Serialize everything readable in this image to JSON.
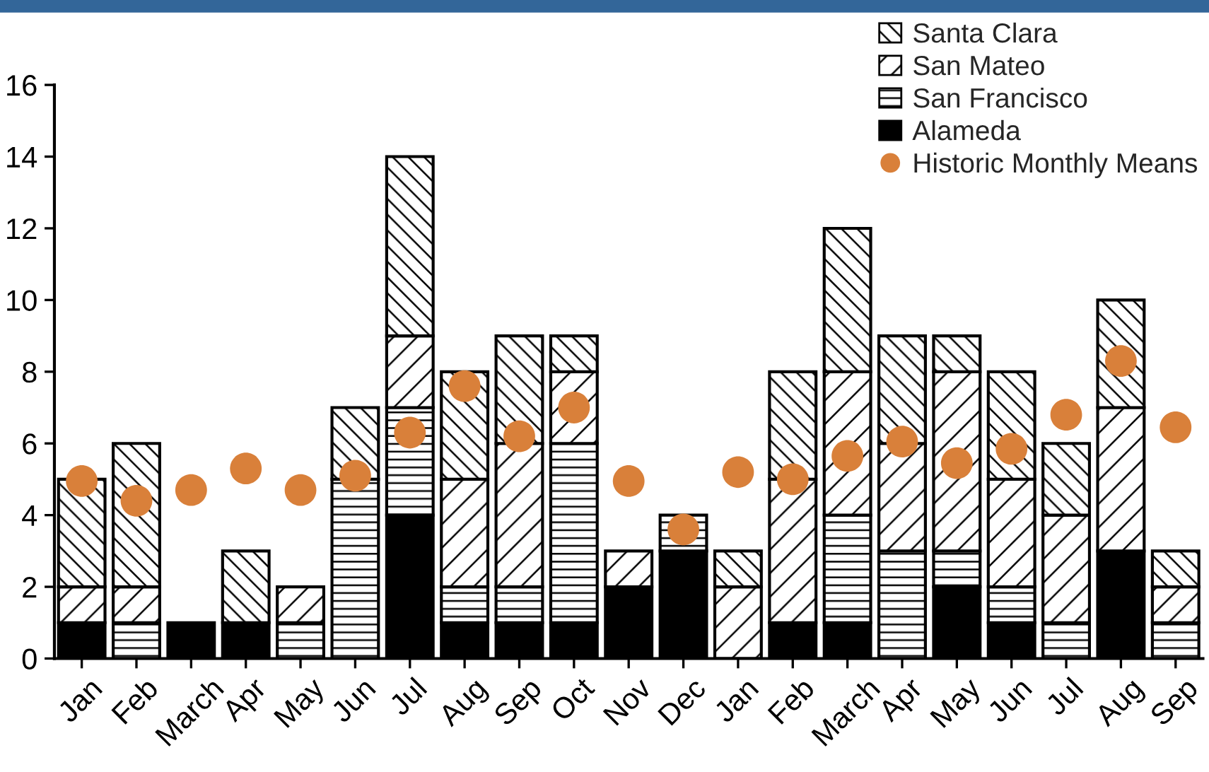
{
  "chart_data": {
    "type": "bar",
    "stacked": true,
    "categories": [
      "Jan",
      "Feb",
      "March",
      "Apr",
      "May",
      "Jun",
      "Jul",
      "Aug",
      "Sep",
      "Oct",
      "Nov",
      "Dec",
      "Jan",
      "Feb",
      "March",
      "Apr",
      "May",
      "Jun",
      "Jul",
      "Aug",
      "Sep"
    ],
    "series": [
      {
        "name": "Alameda",
        "color": "#000000",
        "values": [
          1,
          null,
          1,
          1,
          null,
          null,
          4,
          1,
          1,
          1,
          2,
          3,
          null,
          1,
          1,
          null,
          2,
          1,
          null,
          3,
          null
        ]
      },
      {
        "name": "San Francisco",
        "color": "#000000",
        "values": [
          null,
          1,
          null,
          null,
          1,
          5,
          3,
          1,
          1,
          5,
          null,
          1,
          null,
          null,
          3,
          3,
          1,
          1,
          1,
          null,
          1
        ]
      },
      {
        "name": "San Mateo",
        "color": "#000000",
        "values": [
          1,
          1,
          null,
          null,
          1,
          null,
          2,
          3,
          4,
          2,
          1,
          null,
          2,
          4,
          4,
          3,
          5,
          3,
          3,
          4,
          1
        ]
      },
      {
        "name": "Santa Clara",
        "color": "#000000",
        "values": [
          3,
          4,
          null,
          2,
          null,
          2,
          5,
          3,
          3,
          1,
          null,
          null,
          1,
          3,
          4,
          3,
          1,
          3,
          2,
          3,
          1
        ]
      },
      {
        "name": "Historic Monthly Means",
        "type": "scatter",
        "color": "#d9803a",
        "marker": "circle",
        "values": [
          4.95,
          4.4,
          4.7,
          5.3,
          4.7,
          5.1,
          6.3,
          7.6,
          6.2,
          7.0,
          4.95,
          3.6,
          5.2,
          5.0,
          5.65,
          6.05,
          5.45,
          5.85,
          6.8,
          8.3,
          6.45
        ]
      }
    ],
    "ylim": [
      0,
      16
    ],
    "yticks": [
      0,
      2,
      4,
      6,
      8,
      10,
      12,
      14,
      16
    ],
    "grid": false,
    "legend": "top right"
  }
}
